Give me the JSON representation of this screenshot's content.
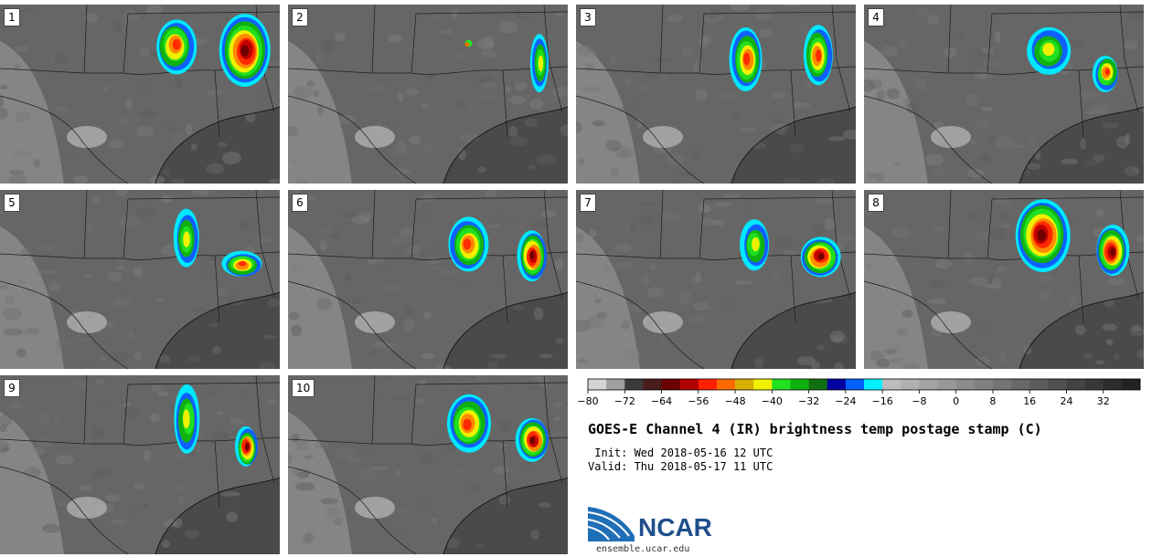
{
  "panels": [
    {
      "label": "1"
    },
    {
      "label": "2"
    },
    {
      "label": "3"
    },
    {
      "label": "4"
    },
    {
      "label": "5"
    },
    {
      "label": "6"
    },
    {
      "label": "7"
    },
    {
      "label": "8"
    },
    {
      "label": "9"
    },
    {
      "label": "10"
    }
  ],
  "colorbar": {
    "ticks": [
      "−80",
      "−72",
      "−64",
      "−56",
      "−48",
      "−40",
      "−32",
      "−24",
      "−16",
      "−8",
      "0",
      "8",
      "16",
      "24",
      "32"
    ],
    "colors": [
      "#d4d4d4",
      "#a0a0a0",
      "#3a3a3a",
      "#4a1c1c",
      "#6a0000",
      "#b00000",
      "#ff2000",
      "#ff6a00",
      "#d8b000",
      "#f0f000",
      "#20e020",
      "#10b010",
      "#107010",
      "#0000a0",
      "#0060ff",
      "#00f0ff",
      "#bcbcbc",
      "#b0b0b0",
      "#a4a4a4",
      "#989898",
      "#8c8c8c",
      "#808080",
      "#747474",
      "#686868",
      "#5c5c5c",
      "#505050",
      "#444444",
      "#383838",
      "#2c2c2c",
      "#222222"
    ]
  },
  "title": "GOES-E Channel 4 (IR) brightness temp postage stamp (C)",
  "init_line": " Init: Wed 2018-05-16 12 UTC",
  "valid_line": "Valid: Thu 2018-05-17 11 UTC",
  "logo": {
    "text": "NCAR",
    "url": "ensemble.ucar.edu"
  }
}
